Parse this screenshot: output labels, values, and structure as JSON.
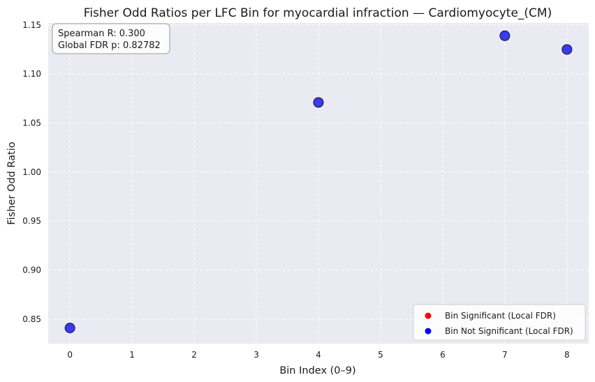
{
  "chart_data": {
    "type": "scatter",
    "title": "Fisher Odd Ratios per LFC Bin for myocardial infraction — Cardiomyocyte_(CM)",
    "xlabel": "Bin Index (0–9)",
    "ylabel": "Fisher Odd Ratio",
    "xlim": [
      -0.35,
      8.35
    ],
    "ylim": [
      0.825,
      1.152
    ],
    "xticks": [
      0,
      1,
      2,
      3,
      4,
      5,
      6,
      7,
      8
    ],
    "yticks": [
      0.85,
      0.9,
      0.95,
      1.0,
      1.05,
      1.1,
      1.15
    ],
    "ytick_labels": [
      "0.85",
      "0.90",
      "0.95",
      "1.00",
      "1.05",
      "1.10",
      "1.15"
    ],
    "grid": true,
    "legend_position": "bottom-right",
    "series": [
      {
        "name": "Bin Significant (Local FDR)",
        "color": "#ff0000",
        "x": [],
        "y": []
      },
      {
        "name": "Bin Not Significant (Local FDR)",
        "color": "#0000ff",
        "marker_color": "#3a3af0",
        "x": [
          0,
          4,
          7,
          8
        ],
        "y": [
          0.841,
          1.071,
          1.139,
          1.125
        ]
      }
    ],
    "annotation": {
      "line1": "Spearman R: 0.300",
      "line2": "Global FDR p: 0.82782"
    }
  }
}
